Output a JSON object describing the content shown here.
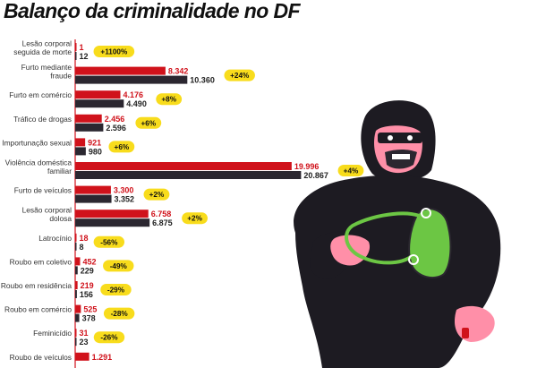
{
  "title": "Balanço da criminalidade no DF",
  "colors": {
    "series_1": "#d0121b",
    "series_2": "#2b2730",
    "badge": "#f8dc1c",
    "axis": "#d0121b"
  },
  "chart_data": {
    "type": "bar",
    "orientation": "horizontal",
    "title": "Balanço da criminalidade no DF",
    "categories": [
      "Lesão corporal seguida de morte",
      "Furto mediante fraude",
      "Furto em comércio",
      "Tráfico de drogas",
      "Importunação sexual",
      "Violência doméstica familiar",
      "Furto de veículos",
      "Lesão corporal dolosa",
      "Latrocínio",
      "Roubo em coletivo",
      "Roubo em residência",
      "Roubo em comércio",
      "Feminicídio",
      "Roubo de veículos"
    ],
    "series": [
      {
        "color": "#d0121b",
        "values": [
          1,
          8342,
          4176,
          2456,
          921,
          19996,
          3300,
          6758,
          18,
          452,
          219,
          525,
          31,
          1291
        ],
        "labels": [
          "1",
          "8.342",
          "4.176",
          "2.456",
          "921",
          "19.996",
          "3.300",
          "6.758",
          "18",
          "452",
          "219",
          "525",
          "31",
          "1.291"
        ]
      },
      {
        "color": "#2b2730",
        "values": [
          12,
          10360,
          4490,
          2596,
          980,
          20867,
          3352,
          6875,
          8,
          229,
          156,
          378,
          23,
          null
        ],
        "labels": [
          "12",
          "10.360",
          "4.490",
          "2.596",
          "980",
          "20.867",
          "3.352",
          "6.875",
          "8",
          "229",
          "156",
          "378",
          "23",
          ""
        ]
      }
    ],
    "changes": [
      "+1100%",
      "+24%",
      "+8%",
      "+6%",
      "+6%",
      "+4%",
      "+2%",
      "+2%",
      "-56%",
      "-49%",
      "-29%",
      "-28%",
      "-26%",
      ""
    ],
    "category_lines": [
      [
        "Lesão corporal",
        "seguida de morte"
      ],
      [
        "Furto mediante",
        "fraude"
      ],
      [
        "Furto em comércio"
      ],
      [
        "Tráfico de drogas"
      ],
      [
        "Importunação sexual"
      ],
      [
        "Violência doméstica",
        "familiar"
      ],
      [
        "Furto de veículos"
      ],
      [
        "Lesão corporal",
        "dolosa"
      ],
      [
        "Latrocínio"
      ],
      [
        "Roubo em coletivo"
      ],
      [
        "Roubo em residência"
      ],
      [
        "Roubo em comércio"
      ],
      [
        "Feminicídio"
      ],
      [
        "Roubo de veículos"
      ]
    ],
    "xlim": [
      0,
      21000
    ],
    "grid": false,
    "legend": "none"
  },
  "illustration": {
    "subject": "burglar-figure",
    "icons": [
      "hooded-burglar-icon",
      "green-handbag-icon"
    ]
  }
}
